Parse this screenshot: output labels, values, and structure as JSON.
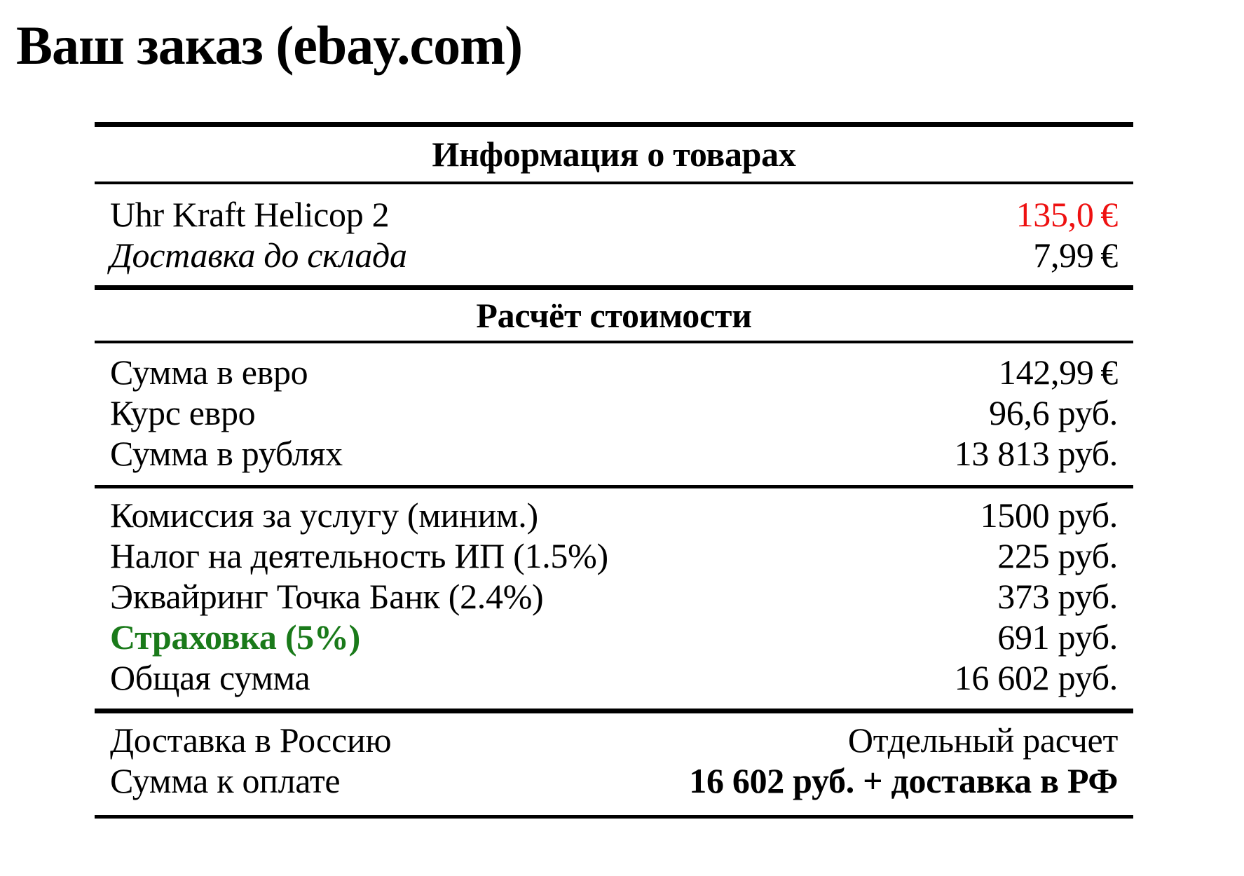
{
  "title": "Ваш заказ (ebay.com)",
  "colors": {
    "background": "#ffffff",
    "text": "#000000",
    "rule": "#000000",
    "price_red": "#ee1111",
    "insurance_green": "#1a7a1a"
  },
  "table": {
    "section1_header": "Информация о товарах",
    "section2_header": "Расчёт стоимости",
    "groups": [
      {
        "name": "items",
        "rows": [
          {
            "label": "Uhr Kraft Helicop 2",
            "value": "135,0 €",
            "value_class": "red"
          },
          {
            "label": "Доставка до склада",
            "label_class": "italic",
            "value": "7,99 €"
          }
        ]
      },
      {
        "name": "conversion",
        "rows": [
          {
            "label": "Сумма в евро",
            "value": "142,99 €"
          },
          {
            "label": "Курс евро",
            "value": "96,6 руб."
          },
          {
            "label": "Сумма в рублях",
            "value": "13 813 руб."
          }
        ]
      },
      {
        "name": "fees",
        "rows": [
          {
            "label": "Комиссия за услугу (миним.)",
            "value": "1500 руб."
          },
          {
            "label": "Налог на деятельность ИП (1.5%)",
            "value": "225 руб."
          },
          {
            "label": "Эквайринг Точка Банк (2.4%)",
            "value": "373 руб."
          },
          {
            "label": "Страховка (5%)",
            "label_class": "green",
            "value": "691 руб."
          },
          {
            "label": "Общая сумма",
            "value": "16 602 руб."
          }
        ]
      },
      {
        "name": "totals",
        "rows": [
          {
            "label": "Доставка в Россию",
            "value": "Отдельный расчет"
          },
          {
            "label": "Сумма к оплате",
            "value": "16 602 руб. + доставка в РФ",
            "value_class": "bold"
          }
        ]
      }
    ]
  }
}
